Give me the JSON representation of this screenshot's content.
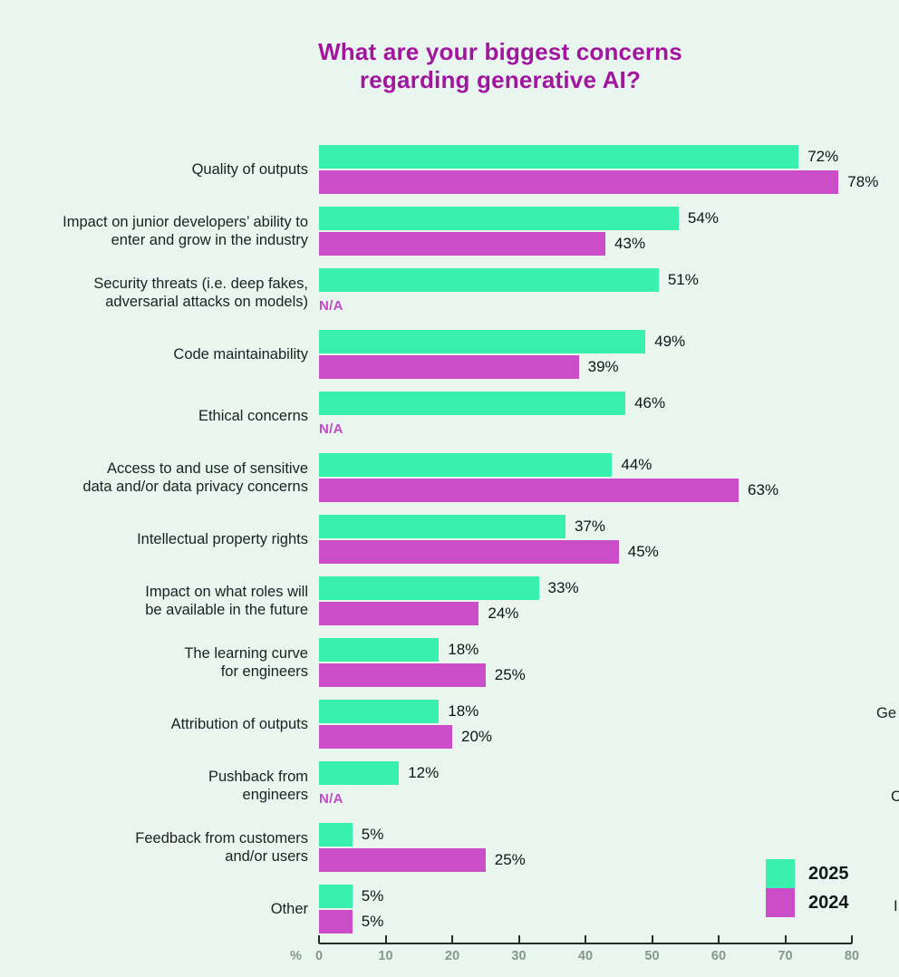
{
  "title": {
    "full": "What are your biggest concerns regarding generative AI?",
    "line1": "What are your biggest concerns",
    "line2": "regarding generative AI?"
  },
  "colors": {
    "background": "#E9F6F0",
    "title": "#A2159F",
    "na_text": "#C44AC4",
    "bar_2025": "#3AF0AF",
    "bar_2024": "#CB4EC8",
    "value_text": "#0E1513",
    "axis_text": "#87968F"
  },
  "chart_data": {
    "type": "bar",
    "orientation": "horizontal",
    "title": "What are your biggest concerns regarding generative AI?",
    "categories": [
      "Quality of outputs",
      "Impact on junior developers’ ability to\nenter and grow in the industry",
      "Security threats (i.e. deep fakes,\nadversarial attacks on models)",
      "Code maintainability",
      "Ethical concerns",
      "Access to and use of sensitive\ndata and/or data privacy concerns",
      "Intellectual property rights",
      "Impact on what roles will\nbe available in the future",
      "The learning curve\nfor engineers",
      "Attribution of outputs",
      "Pushback from\nengineers",
      "Feedback from customers\nand/or users",
      "Other"
    ],
    "series": [
      {
        "name": "2025",
        "color": "#3AF0AF",
        "values": [
          72,
          54,
          51,
          49,
          46,
          44,
          37,
          33,
          18,
          18,
          12,
          5,
          5
        ],
        "labels": [
          "72%",
          "54%",
          "51%",
          "49%",
          "46%",
          "44%",
          "37%",
          "33%",
          "18%",
          "18%",
          "12%",
          "5%",
          "5%"
        ]
      },
      {
        "name": "2024",
        "color": "#CB4EC8",
        "values": [
          78,
          43,
          null,
          39,
          null,
          63,
          45,
          24,
          25,
          20,
          null,
          25,
          5
        ],
        "labels": [
          "78%",
          "43%",
          null,
          "39%",
          null,
          "63%",
          "45%",
          "24%",
          "25%",
          "20%",
          null,
          "25%",
          "5%"
        ]
      }
    ],
    "na_label": "N/A",
    "xlabel": "%",
    "xlim": [
      0,
      80
    ],
    "x_ticks": [
      "0",
      "10",
      "20",
      "30",
      "40",
      "50",
      "60",
      "70",
      "80"
    ],
    "grid": false,
    "legend": [
      {
        "label": "2025",
        "color": "#3AF0AF"
      },
      {
        "label": "2024",
        "color": "#CB4EC8"
      }
    ],
    "legend_position": "bottom-right"
  },
  "edge_fragments": [
    {
      "text": "Ge"
    },
    {
      "text": "C"
    },
    {
      "text": "I"
    }
  ]
}
